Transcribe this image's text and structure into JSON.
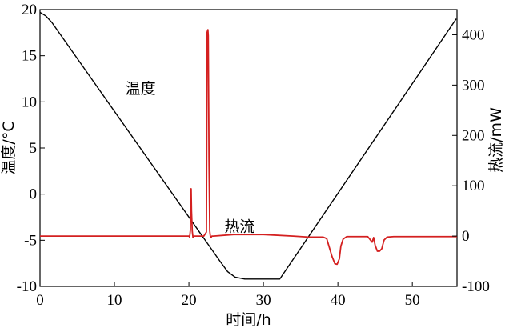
{
  "chart_data": {
    "type": "line",
    "xlabel": "时间/h",
    "ylabel_left": "温度/°C",
    "ylabel_right": "热流/mW",
    "xlim": [
      0,
      56
    ],
    "ylim_left": [
      -10,
      20
    ],
    "ylim_right": [
      -100,
      450
    ],
    "xticks": [
      0,
      10,
      20,
      30,
      40,
      50
    ],
    "yticks_left": [
      -10,
      -5,
      0,
      5,
      10,
      15,
      20
    ],
    "yticks_right": [
      -100,
      0,
      100,
      200,
      300,
      400
    ],
    "grid": false,
    "annotations": [
      {
        "text": "温度",
        "x": 13.5,
        "y": 11.5,
        "axis": "left"
      },
      {
        "text": "热流",
        "x": 26.8,
        "y": 20,
        "axis": "right"
      }
    ],
    "series": [
      {
        "name": "温度",
        "axis": "left",
        "color": "#000000",
        "x": [
          0,
          0.8,
          1.6,
          24.2,
          25.2,
          26.2,
          27.5,
          32.2,
          55.9
        ],
        "y": [
          19.7,
          19.3,
          18.6,
          -7.3,
          -8.4,
          -9.0,
          -9.2,
          -9.2,
          19.0
        ]
      },
      {
        "name": "热流",
        "axis": "right",
        "color": "#d42020",
        "x": [
          0,
          20.0,
          20.1,
          20.2,
          20.25,
          20.3,
          20.35,
          20.45,
          20.55,
          20.65,
          20.75,
          22.0,
          22.35,
          22.45,
          22.55,
          22.6,
          22.7,
          22.8,
          22.9,
          23.0,
          23.1,
          23.3,
          26.0,
          30.0,
          34.0,
          36.0,
          38.0,
          38.5,
          39.2,
          39.6,
          39.9,
          40.2,
          40.4,
          40.7,
          41.2,
          44.0,
          44.6,
          44.8,
          45.0,
          45.3,
          45.6,
          45.9,
          46.2,
          46.6,
          47.5,
          56.0
        ],
        "y": [
          0,
          0,
          -2,
          12,
          92,
          94,
          50,
          10,
          -3,
          0,
          0,
          0,
          8,
          405,
          410,
          398,
          150,
          10,
          -3,
          -2,
          0,
          0,
          3,
          3,
          0,
          -2,
          -2,
          -5,
          -40,
          -55,
          -56,
          -45,
          -20,
          -6,
          -1,
          -1,
          -12,
          -3,
          -18,
          -30,
          -30,
          -25,
          -8,
          -2,
          -1,
          -1
        ]
      }
    ]
  }
}
